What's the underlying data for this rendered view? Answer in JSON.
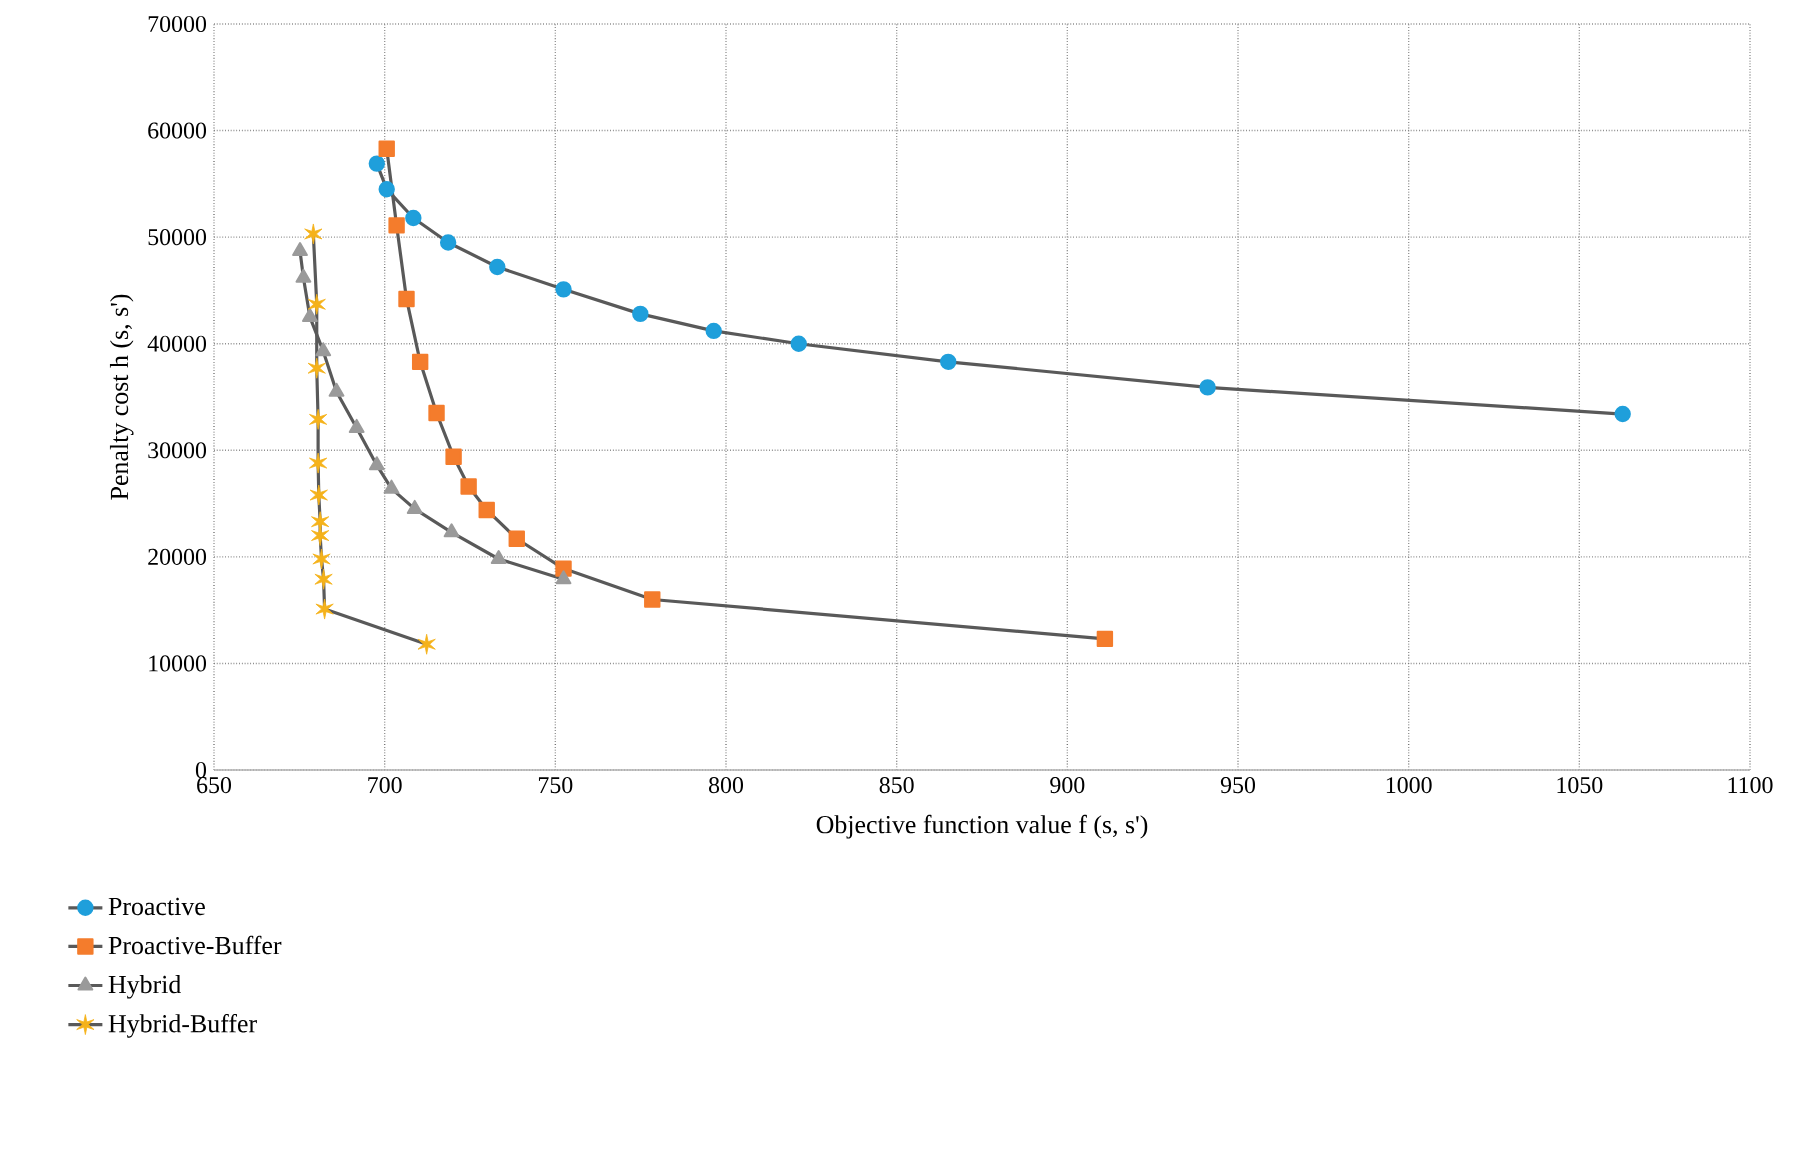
{
  "chart_data": {
    "type": "line",
    "xlabel": "Objective function value f (s, s')",
    "ylabel": "Penalty cost h (s, s')",
    "xlim": [
      650,
      1100
    ],
    "xticks": [
      650,
      700,
      750,
      800,
      850,
      900,
      950,
      1000,
      1050,
      1100
    ],
    "ylim": [
      0,
      70000
    ],
    "yticks": [
      0,
      10000,
      20000,
      30000,
      40000,
      50000,
      60000,
      70000
    ],
    "grid": true,
    "legend": "bottom",
    "series": [
      {
        "name": "Proactive",
        "color": "#1f9fdb",
        "marker": "circle",
        "x": [
          697.7,
          700.6,
          708.4,
          718.6,
          733,
          752.4,
          774.9,
          796.4,
          821.3,
          865.1,
          941.1,
          1062.7
        ],
        "values": [
          56900,
          54500,
          51800,
          49500,
          47200,
          45100,
          42800,
          41200,
          40000,
          38300,
          35900,
          33400
        ]
      },
      {
        "name": "Proactive-Buffer",
        "color": "#f47c2c",
        "marker": "square",
        "x": [
          700.6,
          703.5,
          706.4,
          710.4,
          715.2,
          720.2,
          724.6,
          729.9,
          738.7,
          752.4,
          778.4,
          911
        ],
        "values": [
          58300,
          51100,
          44200,
          38300,
          33500,
          29400,
          26600,
          24400,
          21700,
          18900,
          16000,
          12300
        ]
      },
      {
        "name": "Hybrid",
        "color": "#9a9a9a",
        "marker": "triangle",
        "x": [
          675.2,
          676.2,
          678.1,
          682,
          685.9,
          691.8,
          697.7,
          702,
          708.8,
          719.6,
          733.4,
          752.4
        ],
        "values": [
          48700,
          46200,
          42500,
          39300,
          35500,
          32100,
          28600,
          26400,
          24500,
          22300,
          19800,
          17900
        ]
      },
      {
        "name": "Hybrid-Buffer",
        "color": "#f5b21a",
        "marker": "cross",
        "x": [
          679.1,
          680.1,
          680.1,
          680.5,
          680.5,
          680.7,
          681.1,
          681.1,
          681.5,
          682.1,
          682.4,
          712.3
        ],
        "values": [
          50300,
          43700,
          37700,
          32900,
          28800,
          25800,
          23300,
          22000,
          19800,
          17900,
          15100,
          11800
        ]
      }
    ]
  }
}
